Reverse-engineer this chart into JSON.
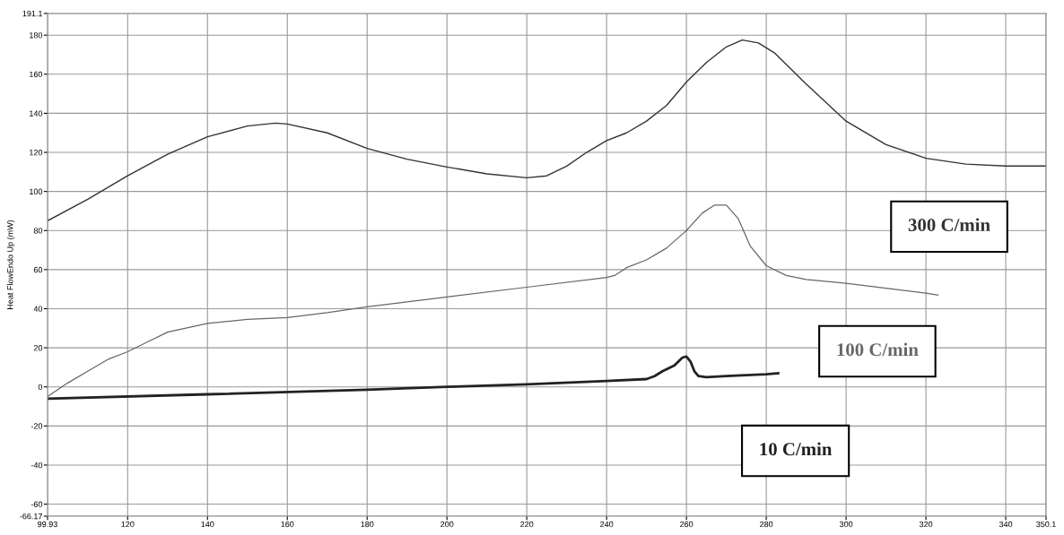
{
  "chart_data": {
    "type": "line",
    "ylabel": "Heat FlowEndo Up (mW)",
    "xlim": [
      99.93,
      350.1
    ],
    "xticks": [
      99.93,
      120,
      140,
      160,
      180,
      200,
      220,
      240,
      260,
      280,
      300,
      320,
      340,
      350.1
    ],
    "ylim": [
      -66.17,
      191.1
    ],
    "yticks": [
      -66.17,
      -60,
      -40,
      -20,
      0,
      20,
      40,
      60,
      80,
      100,
      120,
      140,
      160,
      180,
      191.1
    ],
    "grid": true,
    "legend": false,
    "line_style": "solid",
    "marker": "none",
    "series": [
      {
        "name": "300 C/min",
        "color": "#333333",
        "x": [
          99.93,
          110,
          120,
          130,
          140,
          150,
          157,
          160,
          170,
          180,
          190,
          200,
          210,
          220,
          225,
          230,
          235,
          240,
          245,
          250,
          255,
          260,
          265,
          270,
          274,
          278,
          282,
          290,
          300,
          310,
          320,
          330,
          340,
          350.1
        ],
        "values": [
          85,
          96,
          108,
          119,
          128,
          133.5,
          135,
          134.5,
          130,
          122,
          116.5,
          112.5,
          109,
          107,
          108,
          113,
          120,
          126,
          130,
          136,
          144,
          156,
          166,
          174,
          177.5,
          176,
          171,
          155,
          136,
          124,
          117,
          114,
          113,
          113
        ]
      },
      {
        "name": "100 C/min",
        "color": "#666666",
        "x": [
          99.93,
          105,
          110,
          115,
          120,
          125,
          130,
          140,
          150,
          160,
          170,
          180,
          200,
          220,
          240,
          242,
          245,
          250,
          255,
          260,
          264,
          267,
          270,
          273,
          276,
          280,
          285,
          290,
          300,
          310,
          320,
          323
        ],
        "values": [
          -5,
          2,
          8,
          14,
          18,
          23,
          28,
          32.5,
          34.5,
          35.5,
          38,
          41,
          46,
          51,
          56,
          57,
          61,
          65,
          71,
          80,
          89,
          93,
          93,
          86,
          72,
          62,
          57,
          55,
          53,
          50.5,
          48,
          47
        ]
      },
      {
        "name": "10 C/min",
        "color": "#222222",
        "x": [
          99.93,
          140,
          180,
          200,
          220,
          240,
          250,
          252,
          254,
          257,
          259,
          260,
          261,
          262,
          263,
          265,
          270,
          280,
          283
        ],
        "values": [
          -6,
          -3.8,
          -1.5,
          0,
          1.3,
          3,
          4,
          5.5,
          8,
          11,
          15,
          15.5,
          13,
          8,
          5.5,
          5,
          5.5,
          6.5,
          7
        ]
      }
    ]
  }
}
